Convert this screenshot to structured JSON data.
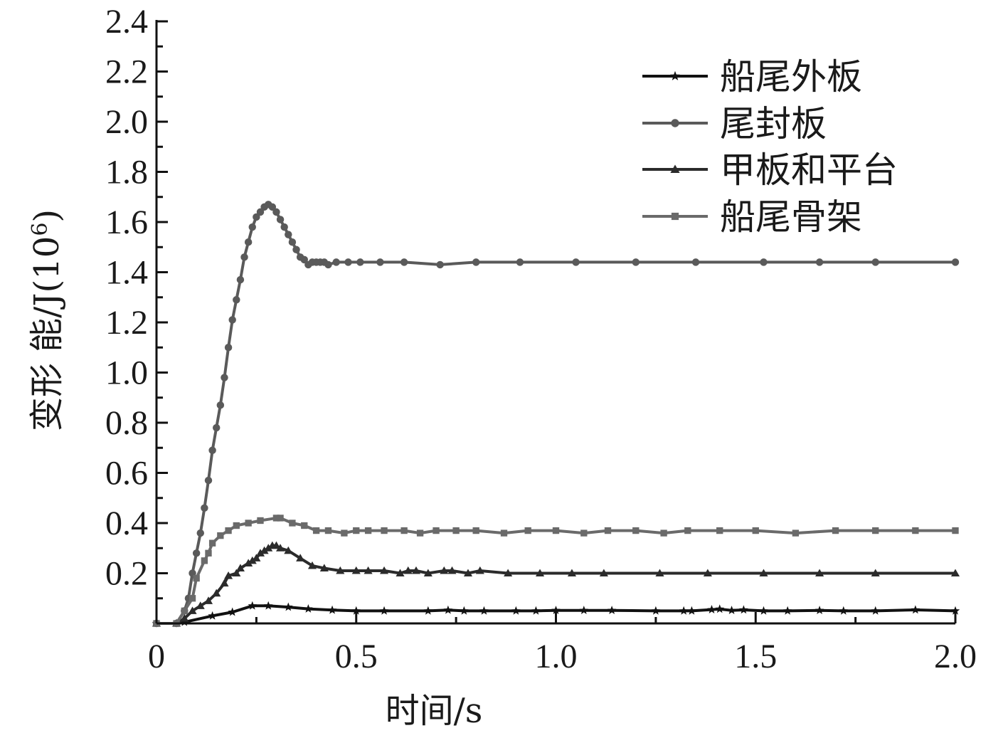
{
  "chart_data": {
    "type": "line",
    "xlabel": "时间/s",
    "ylabel_main": "变形 能/J(10",
    "ylabel_sup": "6",
    "ylabel_close": ")",
    "xlim": [
      0,
      2.0
    ],
    "ylim": [
      0,
      2.4
    ],
    "x_ticks": [
      0,
      0.5,
      1.0,
      1.5,
      2.0
    ],
    "x_tick_labels": [
      "0",
      "0.5",
      "1.0",
      "1.5",
      "2.0"
    ],
    "y_ticks": [
      0.2,
      0.4,
      0.6,
      0.8,
      1.0,
      1.2,
      1.4,
      1.6,
      1.8,
      2.0,
      2.2,
      2.4
    ],
    "y_tick_labels": [
      "0.2",
      "0.4",
      "0.6",
      "0.8",
      "1.0",
      "1.2",
      "1.4",
      "1.6",
      "1.8",
      "2.0",
      "2.2",
      "2.4"
    ],
    "grid": false,
    "legend_position": "top-right",
    "series": [
      {
        "name": "船尾外板",
        "color": "#111111",
        "marker": "star",
        "x": [
          0,
          0.05,
          0.07,
          0.14,
          0.19,
          0.24,
          0.28,
          0.33,
          0.38,
          0.44,
          0.5,
          0.57,
          0.68,
          0.73,
          0.77,
          0.82,
          0.9,
          0.95,
          1.0,
          1.07,
          1.14,
          1.25,
          1.32,
          1.34,
          1.39,
          1.41,
          1.44,
          1.47,
          1.52,
          1.58,
          1.66,
          1.72,
          1.8,
          1.9,
          2.0
        ],
        "y": [
          0,
          0,
          0.005,
          0.03,
          0.045,
          0.07,
          0.07,
          0.065,
          0.058,
          0.053,
          0.05,
          0.05,
          0.05,
          0.053,
          0.05,
          0.05,
          0.05,
          0.05,
          0.052,
          0.052,
          0.052,
          0.05,
          0.05,
          0.05,
          0.055,
          0.057,
          0.052,
          0.054,
          0.05,
          0.05,
          0.052,
          0.05,
          0.05,
          0.054,
          0.05
        ]
      },
      {
        "name": "尾封板",
        "color": "#5a5a5a",
        "marker": "circle",
        "x": [
          0,
          0.05,
          0.07,
          0.08,
          0.09,
          0.1,
          0.11,
          0.12,
          0.13,
          0.14,
          0.15,
          0.16,
          0.17,
          0.18,
          0.19,
          0.2,
          0.21,
          0.22,
          0.23,
          0.24,
          0.25,
          0.26,
          0.27,
          0.28,
          0.29,
          0.3,
          0.31,
          0.32,
          0.33,
          0.34,
          0.35,
          0.36,
          0.37,
          0.38,
          0.39,
          0.4,
          0.41,
          0.42,
          0.43,
          0.45,
          0.48,
          0.51,
          0.56,
          0.62,
          0.71,
          0.8,
          0.91,
          1.05,
          1.2,
          1.35,
          1.52,
          1.66,
          1.8,
          2.0
        ],
        "y": [
          0,
          0,
          0.05,
          0.1,
          0.2,
          0.28,
          0.36,
          0.46,
          0.57,
          0.69,
          0.78,
          0.87,
          0.98,
          1.1,
          1.21,
          1.29,
          1.37,
          1.46,
          1.52,
          1.58,
          1.62,
          1.64,
          1.66,
          1.67,
          1.66,
          1.64,
          1.61,
          1.58,
          1.55,
          1.52,
          1.49,
          1.46,
          1.45,
          1.43,
          1.44,
          1.44,
          1.44,
          1.44,
          1.43,
          1.44,
          1.44,
          1.44,
          1.44,
          1.44,
          1.43,
          1.44,
          1.44,
          1.44,
          1.44,
          1.44,
          1.44,
          1.44,
          1.44,
          1.44
        ]
      },
      {
        "name": "甲板和平台",
        "color": "#2b2b2b",
        "marker": "triangle",
        "x": [
          0,
          0.05,
          0.07,
          0.09,
          0.11,
          0.13,
          0.15,
          0.17,
          0.18,
          0.2,
          0.21,
          0.23,
          0.24,
          0.25,
          0.26,
          0.27,
          0.28,
          0.29,
          0.3,
          0.31,
          0.33,
          0.36,
          0.39,
          0.42,
          0.46,
          0.5,
          0.53,
          0.57,
          0.61,
          0.63,
          0.65,
          0.68,
          0.72,
          0.74,
          0.78,
          0.81,
          0.88,
          0.96,
          1.04,
          1.12,
          1.26,
          1.38,
          1.52,
          1.66,
          1.8,
          2.0
        ],
        "y": [
          0,
          0,
          0.02,
          0.05,
          0.07,
          0.09,
          0.12,
          0.16,
          0.19,
          0.2,
          0.22,
          0.24,
          0.25,
          0.26,
          0.28,
          0.29,
          0.3,
          0.31,
          0.31,
          0.3,
          0.29,
          0.26,
          0.23,
          0.22,
          0.21,
          0.21,
          0.21,
          0.21,
          0.2,
          0.21,
          0.21,
          0.2,
          0.21,
          0.21,
          0.2,
          0.21,
          0.2,
          0.2,
          0.2,
          0.2,
          0.2,
          0.2,
          0.2,
          0.2,
          0.2,
          0.2
        ]
      },
      {
        "name": "船尾骨架",
        "color": "#6a6a6a",
        "marker": "square",
        "x": [
          0,
          0.05,
          0.07,
          0.09,
          0.1,
          0.12,
          0.13,
          0.14,
          0.16,
          0.18,
          0.2,
          0.23,
          0.26,
          0.3,
          0.31,
          0.34,
          0.37,
          0.4,
          0.43,
          0.47,
          0.5,
          0.53,
          0.57,
          0.62,
          0.66,
          0.7,
          0.75,
          0.8,
          0.87,
          0.93,
          1.0,
          1.07,
          1.13,
          1.2,
          1.27,
          1.33,
          1.41,
          1.5,
          1.6,
          1.7,
          1.8,
          1.9,
          2.0
        ],
        "y": [
          0,
          0,
          0.05,
          0.1,
          0.18,
          0.25,
          0.28,
          0.32,
          0.35,
          0.37,
          0.39,
          0.4,
          0.41,
          0.42,
          0.42,
          0.4,
          0.39,
          0.37,
          0.37,
          0.36,
          0.37,
          0.37,
          0.37,
          0.37,
          0.36,
          0.37,
          0.37,
          0.37,
          0.36,
          0.37,
          0.37,
          0.36,
          0.37,
          0.37,
          0.36,
          0.37,
          0.37,
          0.37,
          0.36,
          0.37,
          0.37,
          0.37,
          0.37
        ]
      }
    ]
  }
}
